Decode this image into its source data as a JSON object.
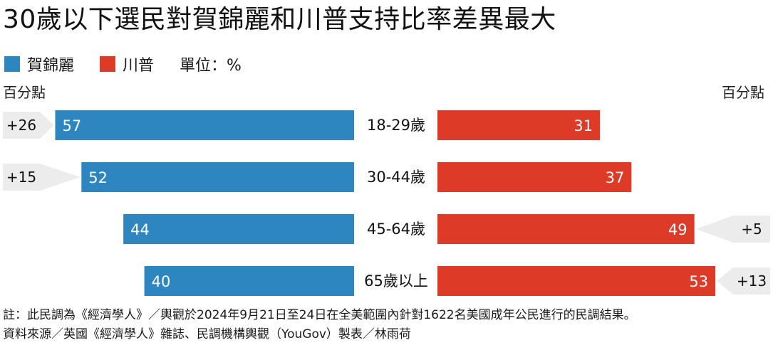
{
  "title": "30歲以下選民對賀錦麗和川普支持比率差異最大",
  "legend": {
    "harris_label": "賀錦麗",
    "trump_label": "川普",
    "unit": "單位：%"
  },
  "axis": {
    "left_label": "百分點",
    "right_label": "百分點"
  },
  "colors": {
    "harris": "#2e86c1",
    "trump": "#dd3a27",
    "diff_box": "#ececec"
  },
  "chart_data": {
    "type": "bar",
    "layout": "diverging-butterfly",
    "categories": [
      "18-29歲",
      "30-44歲",
      "45-64歲",
      "65歲以上"
    ],
    "series": [
      {
        "name": "賀錦麗",
        "values": [
          57,
          52,
          44,
          40
        ]
      },
      {
        "name": "川普",
        "values": [
          31,
          37,
          49,
          53
        ]
      }
    ],
    "differences": [
      {
        "label": "+26",
        "side": "left"
      },
      {
        "label": "+15",
        "side": "left"
      },
      {
        "label": "+5",
        "side": "right"
      },
      {
        "label": "+13",
        "side": "right"
      }
    ],
    "ylim": [
      0,
      60
    ]
  },
  "footer": {
    "note": "註：此民調為《經濟學人》／輿觀於2024年9月21日至24日在全美範圍內針對1622名美國成年公民進行的民調結果。",
    "source": "資料來源／英國《經濟學人》雜誌、民調機構輿觀（YouGov）製表／林雨荷"
  }
}
